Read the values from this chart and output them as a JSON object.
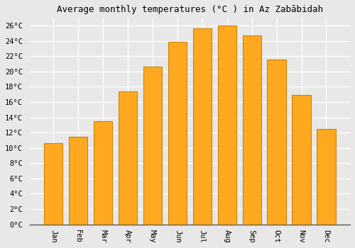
{
  "title": "Average monthly temperatures (°C ) in Az Zabābidah",
  "months": [
    "Jan",
    "Feb",
    "Mar",
    "Apr",
    "May",
    "Jun",
    "Jul",
    "Aug",
    "Sep",
    "Oct",
    "Nov",
    "Dec"
  ],
  "values": [
    10.6,
    11.5,
    13.5,
    17.4,
    20.6,
    23.9,
    25.6,
    26.0,
    24.7,
    21.6,
    16.9,
    12.5
  ],
  "bar_color": "#FFA820",
  "bar_edge_color": "#C8860A",
  "ylim": [
    0,
    27
  ],
  "yticks": [
    0,
    2,
    4,
    6,
    8,
    10,
    12,
    14,
    16,
    18,
    20,
    22,
    24,
    26
  ],
  "background_color": "#e8e8e8",
  "plot_bg_color": "#e8e8e8",
  "grid_color": "#ffffff",
  "title_fontsize": 9,
  "tick_fontsize": 7.5,
  "font_family": "monospace"
}
